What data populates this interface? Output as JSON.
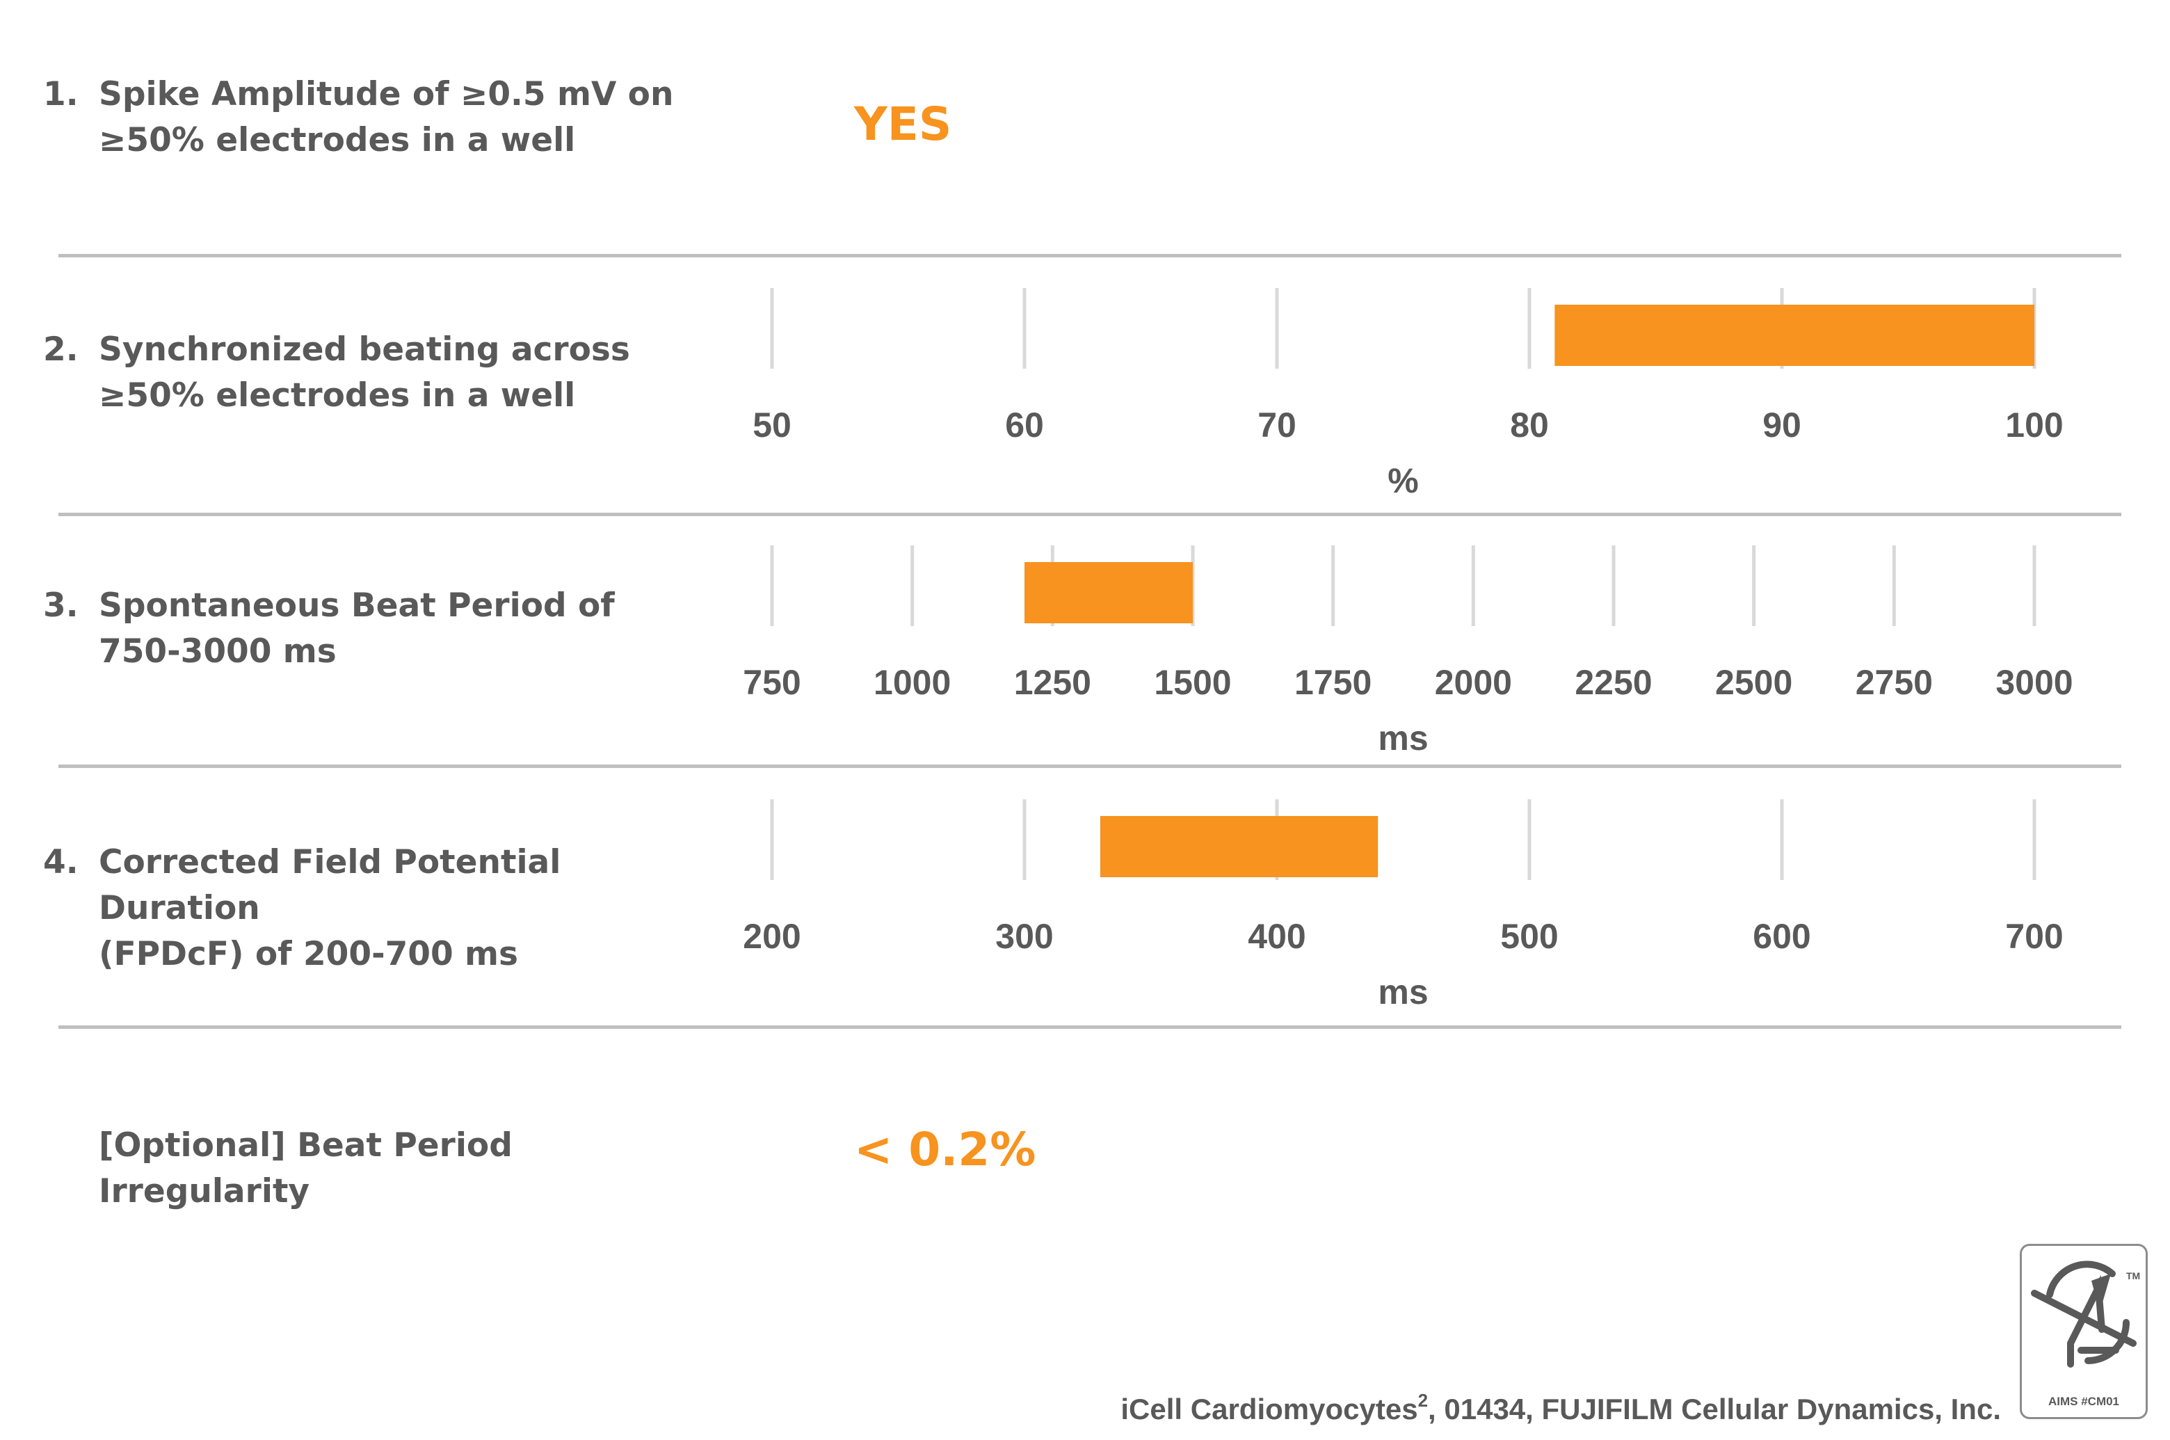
{
  "criteria": [
    {
      "number": "1.",
      "lines": [
        "Spike Amplitude of ≥0.5 mV on",
        "≥50% electrodes in a well"
      ],
      "value": "YES"
    },
    {
      "number": "2.",
      "lines": [
        "Synchronized beating across",
        "≥50% electrodes in a well"
      ]
    },
    {
      "number": "3.",
      "lines": [
        "Spontaneous Beat Period of",
        "750-3000 ms"
      ]
    },
    {
      "number": "4.",
      "lines": [
        "Corrected Field Potential Duration",
        "(FPDcF) of 200-700 ms"
      ]
    },
    {
      "number": "",
      "lines": [
        "[Optional] Beat Period Irregularity"
      ],
      "value": "< 0.2%"
    }
  ],
  "chart_data": [
    {
      "type": "bar",
      "orientation": "horizontal-range",
      "xlabel": "%",
      "xlim": [
        50,
        100
      ],
      "ticks": [
        50,
        60,
        70,
        80,
        90,
        100
      ],
      "range": [
        81,
        100
      ],
      "grid": true
    },
    {
      "type": "bar",
      "orientation": "horizontal-range",
      "xlabel": "ms",
      "xlim": [
        750,
        3000
      ],
      "ticks": [
        750,
        1000,
        1250,
        1500,
        1750,
        2000,
        2250,
        2500,
        2750,
        3000
      ],
      "range": [
        1200,
        1500
      ],
      "grid": true
    },
    {
      "type": "bar",
      "orientation": "horizontal-range",
      "xlabel": "ms",
      "xlim": [
        200,
        700
      ],
      "ticks": [
        200,
        300,
        400,
        500,
        600,
        700
      ],
      "range": [
        330,
        440
      ],
      "grid": true
    }
  ],
  "colors": {
    "accent": "#F7931E",
    "text": "#595959",
    "grid": "#d9d9d9",
    "separator": "#bfbfbf"
  },
  "footer": {
    "product": "iCell Cardiomyocytes",
    "superscript": "2",
    "rest": ", 01434, FUJIFILM Cellular Dynamics, Inc."
  },
  "logo": {
    "tm": "TM",
    "code": "AIMS #CM01"
  }
}
